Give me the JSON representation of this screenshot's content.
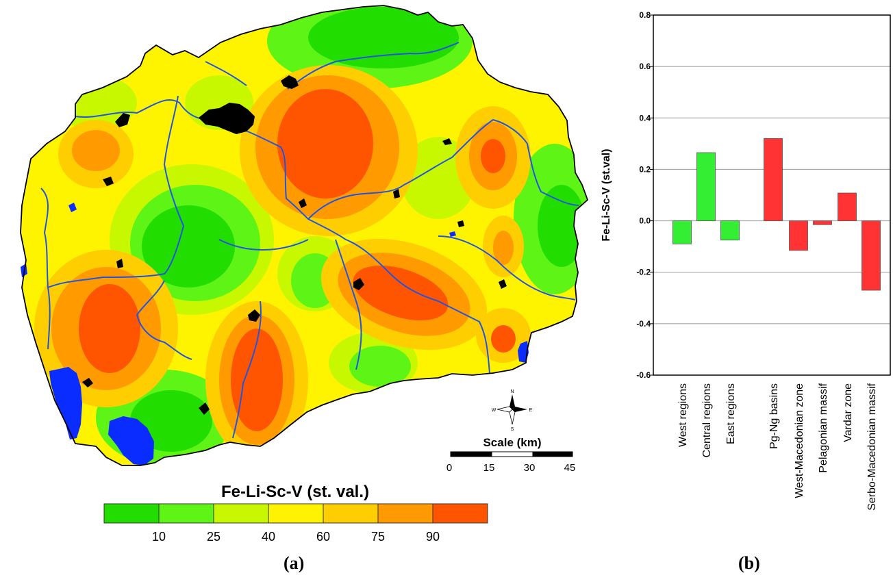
{
  "panels": {
    "a_caption": "(a)",
    "b_caption": "(b)"
  },
  "map": {
    "legend_title": "Fe-Li-Sc-V (st. val.)",
    "legend_colors": [
      "#22dd00",
      "#5ef416",
      "#c8f800",
      "#fff400",
      "#ffce00",
      "#ff9a00",
      "#ff5500"
    ],
    "legend_ticks": [
      "10",
      "25",
      "40",
      "60",
      "75",
      "90"
    ],
    "scale_title": "Scale (km)",
    "scale_ticks": [
      "0",
      "15",
      "30",
      "45"
    ],
    "compass": {
      "n": "N",
      "s": "S",
      "e": "E",
      "w": "W"
    },
    "colors": {
      "river": "#2255dd",
      "lake": "#0a2cff",
      "urban": "#000000",
      "border": "#000000"
    }
  },
  "chart_data": {
    "type": "bar",
    "categories": [
      "West regions",
      "Central regions",
      "East regions",
      "Pg-Ng basins",
      "West-Macedonian zone",
      "Pelagonian massif",
      "Vardar zone",
      "Serbo-Macedonian massif"
    ],
    "values": [
      -0.09,
      0.265,
      -0.075,
      0.32,
      -0.115,
      -0.015,
      0.108,
      -0.27
    ],
    "colors": [
      "#33ee33",
      "#33ee33",
      "#33ee33",
      "#ff3333",
      "#ff3333",
      "#ff3333",
      "#ff3333",
      "#ff3333"
    ],
    "title": "",
    "xlabel": "",
    "ylabel": "Fe-Li-Sc-V (st.val)",
    "ylim": [
      -0.6,
      0.8
    ],
    "yticks": [
      "0.8",
      "0.6",
      "0.4",
      "0.2",
      "0.0",
      "-0.2",
      "-0.4",
      "-0.6"
    ],
    "grid": true
  }
}
